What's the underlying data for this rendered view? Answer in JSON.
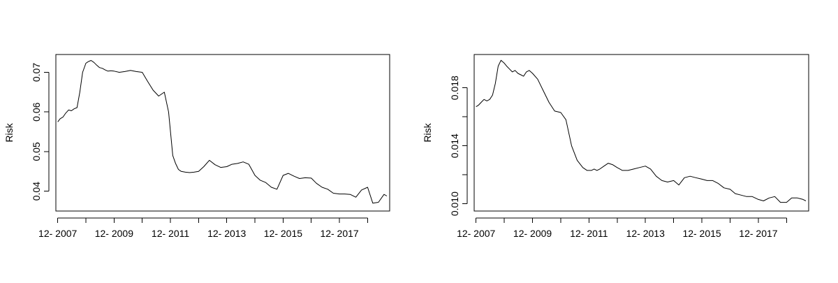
{
  "chart_data": [
    {
      "type": "line",
      "title": "",
      "xlabel": "",
      "ylabel": "Risk",
      "xlim": [
        2007.85,
        2019.7
      ],
      "ylim": [
        0.035,
        0.0745
      ],
      "x_ticks": [
        {
          "value": 2007.917,
          "label": "12- 2007"
        },
        {
          "value": 2009.917,
          "label": "12- 2009"
        },
        {
          "value": 2011.917,
          "label": "12- 2011"
        },
        {
          "value": 2013.917,
          "label": "12- 2013"
        },
        {
          "value": 2015.917,
          "label": "12- 2015"
        },
        {
          "value": 2017.917,
          "label": "12- 2017"
        }
      ],
      "x_tick_marks": [
        2007.917,
        2008.917,
        2009.917,
        2010.917,
        2011.917,
        2012.917,
        2013.917,
        2014.917,
        2015.917,
        2016.917,
        2017.917,
        2018.917
      ],
      "y_ticks": [
        {
          "value": 0.04,
          "label": "0.04"
        },
        {
          "value": 0.05,
          "label": "0.05"
        },
        {
          "value": 0.06,
          "label": "0.06"
        },
        {
          "value": 0.07,
          "label": "0.07"
        }
      ],
      "grid": false,
      "series": [
        {
          "x": [
            2007.917,
            2008.0,
            2008.1,
            2008.2,
            2008.3,
            2008.4,
            2008.5,
            2008.6,
            2008.7,
            2008.8,
            2008.917,
            2009.0,
            2009.1,
            2009.2,
            2009.3,
            2009.4,
            2009.5,
            2009.6,
            2009.7,
            2009.8,
            2009.917,
            2010.1,
            2010.3,
            2010.5,
            2010.7,
            2010.917,
            2011.1,
            2011.3,
            2011.5,
            2011.7,
            2011.85,
            2012.0,
            2012.1,
            2012.2,
            2012.3,
            2012.45,
            2012.6,
            2012.75,
            2012.917,
            2013.1,
            2013.3,
            2013.5,
            2013.7,
            2013.917,
            2014.1,
            2014.3,
            2014.5,
            2014.7,
            2014.917,
            2015.1,
            2015.3,
            2015.5,
            2015.7,
            2015.917,
            2016.1,
            2016.3,
            2016.5,
            2016.7,
            2016.917,
            2017.1,
            2017.3,
            2017.5,
            2017.7,
            2017.917,
            2018.1,
            2018.3,
            2018.5,
            2018.7,
            2018.917,
            2019.1,
            2019.3,
            2019.5,
            2019.6
          ],
          "y": [
            0.0575,
            0.0583,
            0.0587,
            0.0597,
            0.0605,
            0.0603,
            0.0608,
            0.0611,
            0.065,
            0.07,
            0.0723,
            0.0727,
            0.073,
            0.0725,
            0.0718,
            0.0712,
            0.071,
            0.0706,
            0.0703,
            0.0704,
            0.0703,
            0.07,
            0.0702,
            0.0705,
            0.0702,
            0.07,
            0.0678,
            0.0655,
            0.064,
            0.065,
            0.06,
            0.049,
            0.047,
            0.0455,
            0.045,
            0.0448,
            0.0447,
            0.0448,
            0.045,
            0.0462,
            0.0478,
            0.0467,
            0.046,
            0.0462,
            0.0468,
            0.047,
            0.0474,
            0.0468,
            0.044,
            0.0428,
            0.0422,
            0.041,
            0.0405,
            0.044,
            0.0445,
            0.0438,
            0.0432,
            0.0434,
            0.0433,
            0.042,
            0.041,
            0.0405,
            0.0395,
            0.0393,
            0.0393,
            0.0392,
            0.0385,
            0.0403,
            0.041,
            0.037,
            0.0372,
            0.0392,
            0.0388
          ]
        }
      ]
    },
    {
      "type": "line",
      "title": "",
      "xlabel": "",
      "ylabel": "Risk",
      "xlim": [
        2007.85,
        2019.7
      ],
      "ylim": [
        0.0095,
        0.0203
      ],
      "x_ticks": [
        {
          "value": 2007.917,
          "label": "12- 2007"
        },
        {
          "value": 2009.917,
          "label": "12- 2009"
        },
        {
          "value": 2011.917,
          "label": "12- 2011"
        },
        {
          "value": 2013.917,
          "label": "12- 2013"
        },
        {
          "value": 2015.917,
          "label": "12- 2015"
        },
        {
          "value": 2017.917,
          "label": "12- 2017"
        }
      ],
      "x_tick_marks": [
        2007.917,
        2008.917,
        2009.917,
        2010.917,
        2011.917,
        2012.917,
        2013.917,
        2014.917,
        2015.917,
        2016.917,
        2017.917,
        2018.917
      ],
      "y_ticks": [
        {
          "value": 0.01,
          "label": "0.010"
        },
        {
          "value": 0.014,
          "label": "0.014"
        },
        {
          "value": 0.018,
          "label": "0.018"
        }
      ],
      "y_tick_marks": [
        0.01,
        0.012,
        0.014,
        0.016,
        0.018
      ],
      "grid": false,
      "series": [
        {
          "x": [
            2007.917,
            2008.0,
            2008.1,
            2008.2,
            2008.3,
            2008.4,
            2008.5,
            2008.6,
            2008.7,
            2008.8,
            2008.917,
            2009.0,
            2009.1,
            2009.2,
            2009.3,
            2009.4,
            2009.5,
            2009.6,
            2009.7,
            2009.8,
            2009.917,
            2010.1,
            2010.3,
            2010.5,
            2010.7,
            2010.917,
            2011.1,
            2011.3,
            2011.5,
            2011.7,
            2011.85,
            2012.0,
            2012.1,
            2012.2,
            2012.3,
            2012.45,
            2012.6,
            2012.75,
            2012.917,
            2013.1,
            2013.3,
            2013.5,
            2013.7,
            2013.917,
            2014.1,
            2014.3,
            2014.5,
            2014.7,
            2014.917,
            2015.1,
            2015.3,
            2015.5,
            2015.7,
            2015.917,
            2016.1,
            2016.3,
            2016.5,
            2016.7,
            2016.917,
            2017.1,
            2017.3,
            2017.5,
            2017.7,
            2017.917,
            2018.1,
            2018.3,
            2018.5,
            2018.7,
            2018.917,
            2019.1,
            2019.3,
            2019.5,
            2019.6
          ],
          "y": [
            0.0167,
            0.0168,
            0.017,
            0.0172,
            0.0171,
            0.0172,
            0.0175,
            0.0183,
            0.0195,
            0.0199,
            0.0197,
            0.0195,
            0.0193,
            0.0191,
            0.0192,
            0.019,
            0.0189,
            0.0188,
            0.0191,
            0.0192,
            0.019,
            0.0186,
            0.0178,
            0.017,
            0.0164,
            0.0163,
            0.0158,
            0.014,
            0.013,
            0.0125,
            0.0123,
            0.0123,
            0.0124,
            0.0123,
            0.0124,
            0.0126,
            0.0128,
            0.0127,
            0.0125,
            0.0123,
            0.0123,
            0.0124,
            0.0125,
            0.0126,
            0.0124,
            0.0119,
            0.0116,
            0.0115,
            0.0116,
            0.0113,
            0.0118,
            0.0119,
            0.0118,
            0.0117,
            0.0116,
            0.0116,
            0.0114,
            0.0111,
            0.011,
            0.0107,
            0.0106,
            0.0105,
            0.0105,
            0.0103,
            0.0102,
            0.0104,
            0.0105,
            0.0101,
            0.0101,
            0.0104,
            0.0104,
            0.0103,
            0.0102
          ]
        }
      ]
    }
  ]
}
